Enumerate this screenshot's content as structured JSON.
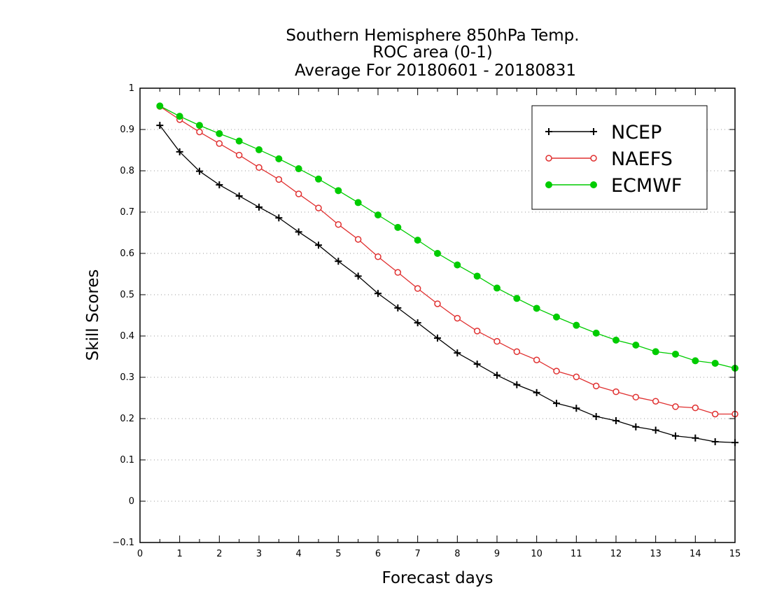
{
  "chart_data": {
    "type": "line",
    "title": [
      "Southern Hemisphere 850hPa Temp.",
      "ROC area (0-1)",
      "Average For 20180601 - 20180831"
    ],
    "xlabel": "Forecast days",
    "ylabel": "Skill Scores",
    "xlim": [
      0,
      15
    ],
    "ylim": [
      -0.1,
      1
    ],
    "xticks": [
      "0",
      "1",
      "2",
      "3",
      "4",
      "5",
      "6",
      "7",
      "8",
      "9",
      "10",
      "11",
      "12",
      "13",
      "14",
      "15"
    ],
    "yticks": [
      "−0.1",
      "0",
      "0.1",
      "0.2",
      "0.3",
      "0.4",
      "0.5",
      "0.6",
      "0.7",
      "0.8",
      "0.9",
      "1"
    ],
    "grid": "horizontal dotted",
    "legend_position": "top-right",
    "x": [
      0.5,
      1,
      1.5,
      2,
      2.5,
      3,
      3.5,
      4,
      4.5,
      5,
      5.5,
      6,
      6.5,
      7,
      7.5,
      8,
      8.5,
      9,
      9.5,
      10,
      10.5,
      11,
      11.5,
      12,
      12.5,
      13,
      13.5,
      14,
      14.5,
      15
    ],
    "series": [
      {
        "name": "NCEP",
        "color": "#000000",
        "marker": "plus",
        "values": [
          0.91,
          0.846,
          0.799,
          0.766,
          0.739,
          0.712,
          0.686,
          0.652,
          0.62,
          0.581,
          0.545,
          0.503,
          0.468,
          0.432,
          0.395,
          0.359,
          0.332,
          0.305,
          0.282,
          0.263,
          0.237,
          0.225,
          0.205,
          0.195,
          0.18,
          0.172,
          0.158,
          0.153,
          0.144,
          0.142
        ]
      },
      {
        "name": "NAEFS",
        "color": "#e03030",
        "marker": "open-circle",
        "values": [
          0.956,
          0.924,
          0.894,
          0.866,
          0.838,
          0.808,
          0.779,
          0.744,
          0.71,
          0.67,
          0.634,
          0.592,
          0.554,
          0.515,
          0.478,
          0.443,
          0.412,
          0.387,
          0.362,
          0.342,
          0.315,
          0.301,
          0.279,
          0.265,
          0.252,
          0.242,
          0.229,
          0.226,
          0.211,
          0.211
        ]
      },
      {
        "name": "ECMWF",
        "color": "#00cc00",
        "marker": "filled-circle",
        "values": [
          0.957,
          0.932,
          0.91,
          0.89,
          0.872,
          0.851,
          0.829,
          0.805,
          0.78,
          0.752,
          0.723,
          0.693,
          0.663,
          0.632,
          0.6,
          0.572,
          0.545,
          0.516,
          0.491,
          0.467,
          0.446,
          0.426,
          0.407,
          0.39,
          0.378,
          0.362,
          0.356,
          0.34,
          0.334,
          0.322
        ]
      }
    ]
  }
}
